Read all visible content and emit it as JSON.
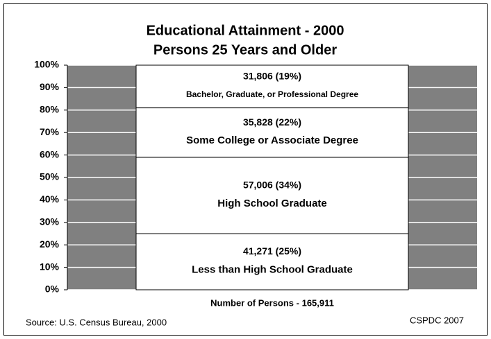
{
  "chart_data": {
    "type": "stacked_bar_100",
    "title": [
      "Educational Attainment - 2000",
      "Persons 25 Years and Older"
    ],
    "categories": [
      "Less than High School Graduate",
      "High School Graduate",
      "Some College or Associate Degree",
      "Bachelor, Graduate, or Professional Degree"
    ],
    "values": [
      25,
      34,
      22,
      19
    ],
    "value_labels": [
      "41,271 (25%)",
      "57,006 (34%)",
      "35,828 (22%)",
      "31,806 (19%)"
    ],
    "color": "#ffffff",
    "background_color": "#808080",
    "x_label": "Number of Persons - 165,911",
    "source": "Source: U.S. Census Bureau, 2000",
    "credit": "CSPDC 2007",
    "ylim": [
      0,
      100
    ],
    "yticks": [
      {
        "value": 0,
        "label": "0%"
      },
      {
        "value": 10,
        "label": "10%"
      },
      {
        "value": 20,
        "label": "20%"
      },
      {
        "value": 30,
        "label": "30%"
      },
      {
        "value": 40,
        "label": "40%"
      },
      {
        "value": 50,
        "label": "50%"
      },
      {
        "value": 60,
        "label": "60%"
      },
      {
        "value": 70,
        "label": "70%"
      },
      {
        "value": 80,
        "label": "80%"
      },
      {
        "value": 90,
        "label": "90%"
      },
      {
        "value": 100,
        "label": "100%"
      }
    ],
    "grid": true
  }
}
